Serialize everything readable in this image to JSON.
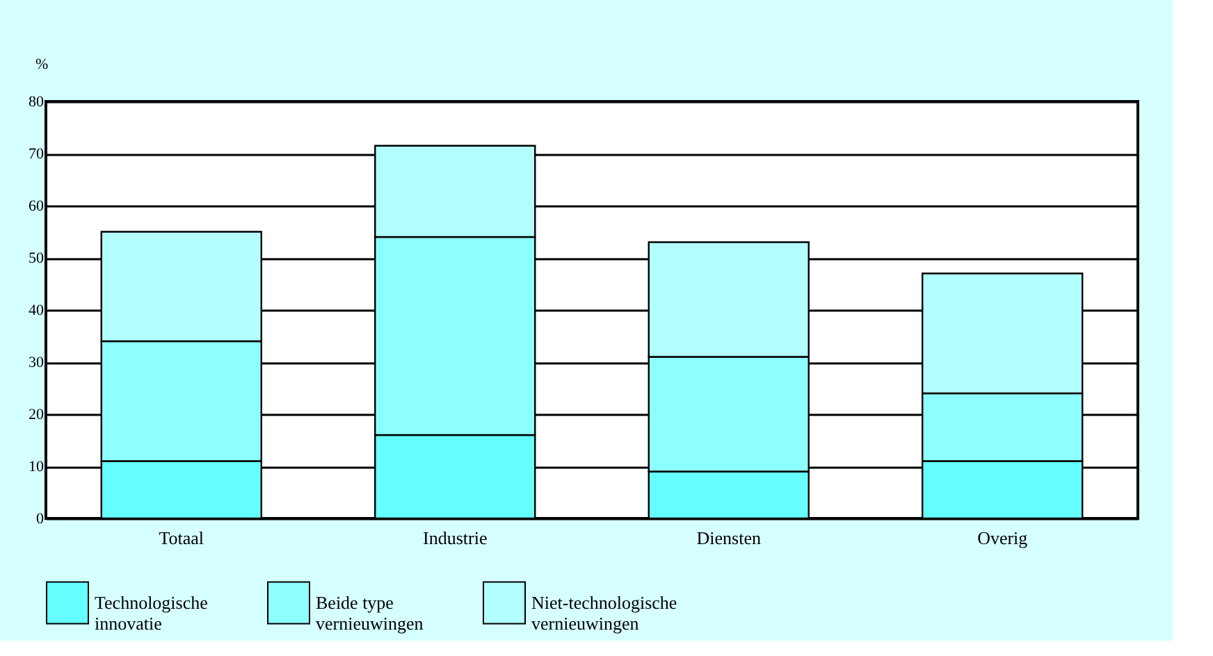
{
  "chart_data": {
    "type": "bar",
    "stacked": true,
    "ylabel": "%",
    "categories": [
      "Totaal",
      "Industrie",
      "Diensten",
      "Overig"
    ],
    "series": [
      {
        "name": "Technologische innovatie",
        "color": "#66ffff",
        "values": [
          11,
          16,
          9,
          11
        ]
      },
      {
        "name": "Beide type vernieuwingen",
        "color": "#8effff",
        "values": [
          23,
          38,
          22,
          13
        ]
      },
      {
        "name": "Niet-technologische vernieuwingen",
        "color": "#b3ffff",
        "values": [
          21,
          17.5,
          22,
          23
        ]
      }
    ],
    "ylim": [
      0,
      80
    ],
    "yticks": [
      0,
      10,
      20,
      30,
      40,
      50,
      60,
      70,
      80
    ],
    "grid": "y",
    "legend": "bottom left"
  }
}
